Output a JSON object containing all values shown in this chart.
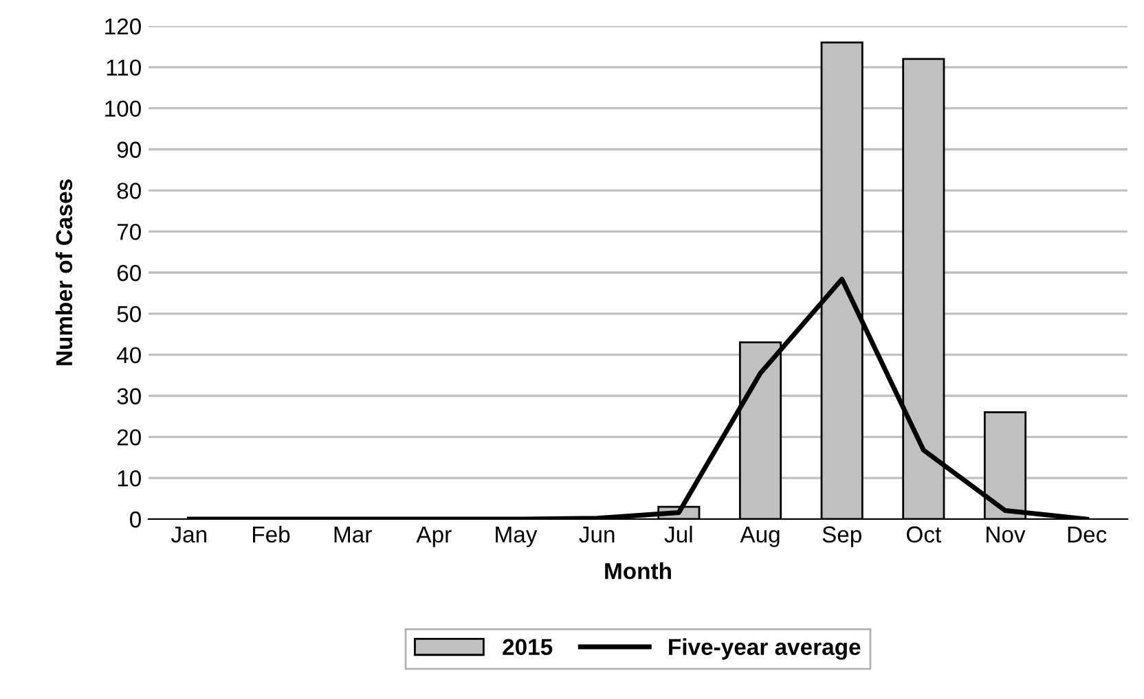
{
  "chart_data": {
    "type": "bar",
    "xlabel": "Month",
    "ylabel": "Number of Cases",
    "categories": [
      "Jan",
      "Feb",
      "Mar",
      "Apr",
      "May",
      "Jun",
      "Jul",
      "Aug",
      "Sep",
      "Oct",
      "Nov",
      "Dec"
    ],
    "series": [
      {
        "name": "2015",
        "color": "#c0c0c0",
        "values": [
          0,
          0,
          0,
          0,
          0,
          0,
          3,
          43,
          116,
          112,
          26,
          0
        ]
      },
      {
        "name": "Five-year average",
        "type": "line",
        "color": "#000000",
        "values": [
          0,
          0,
          0,
          0,
          0,
          0.2,
          1.6,
          35.5,
          58.4,
          16.8,
          2.1,
          0
        ]
      }
    ],
    "ylim": [
      0,
      120
    ],
    "yticks": [
      0,
      10,
      20,
      30,
      40,
      50,
      60,
      70,
      80,
      90,
      100,
      110,
      120
    ],
    "grid": "y",
    "legend": "bottom"
  }
}
